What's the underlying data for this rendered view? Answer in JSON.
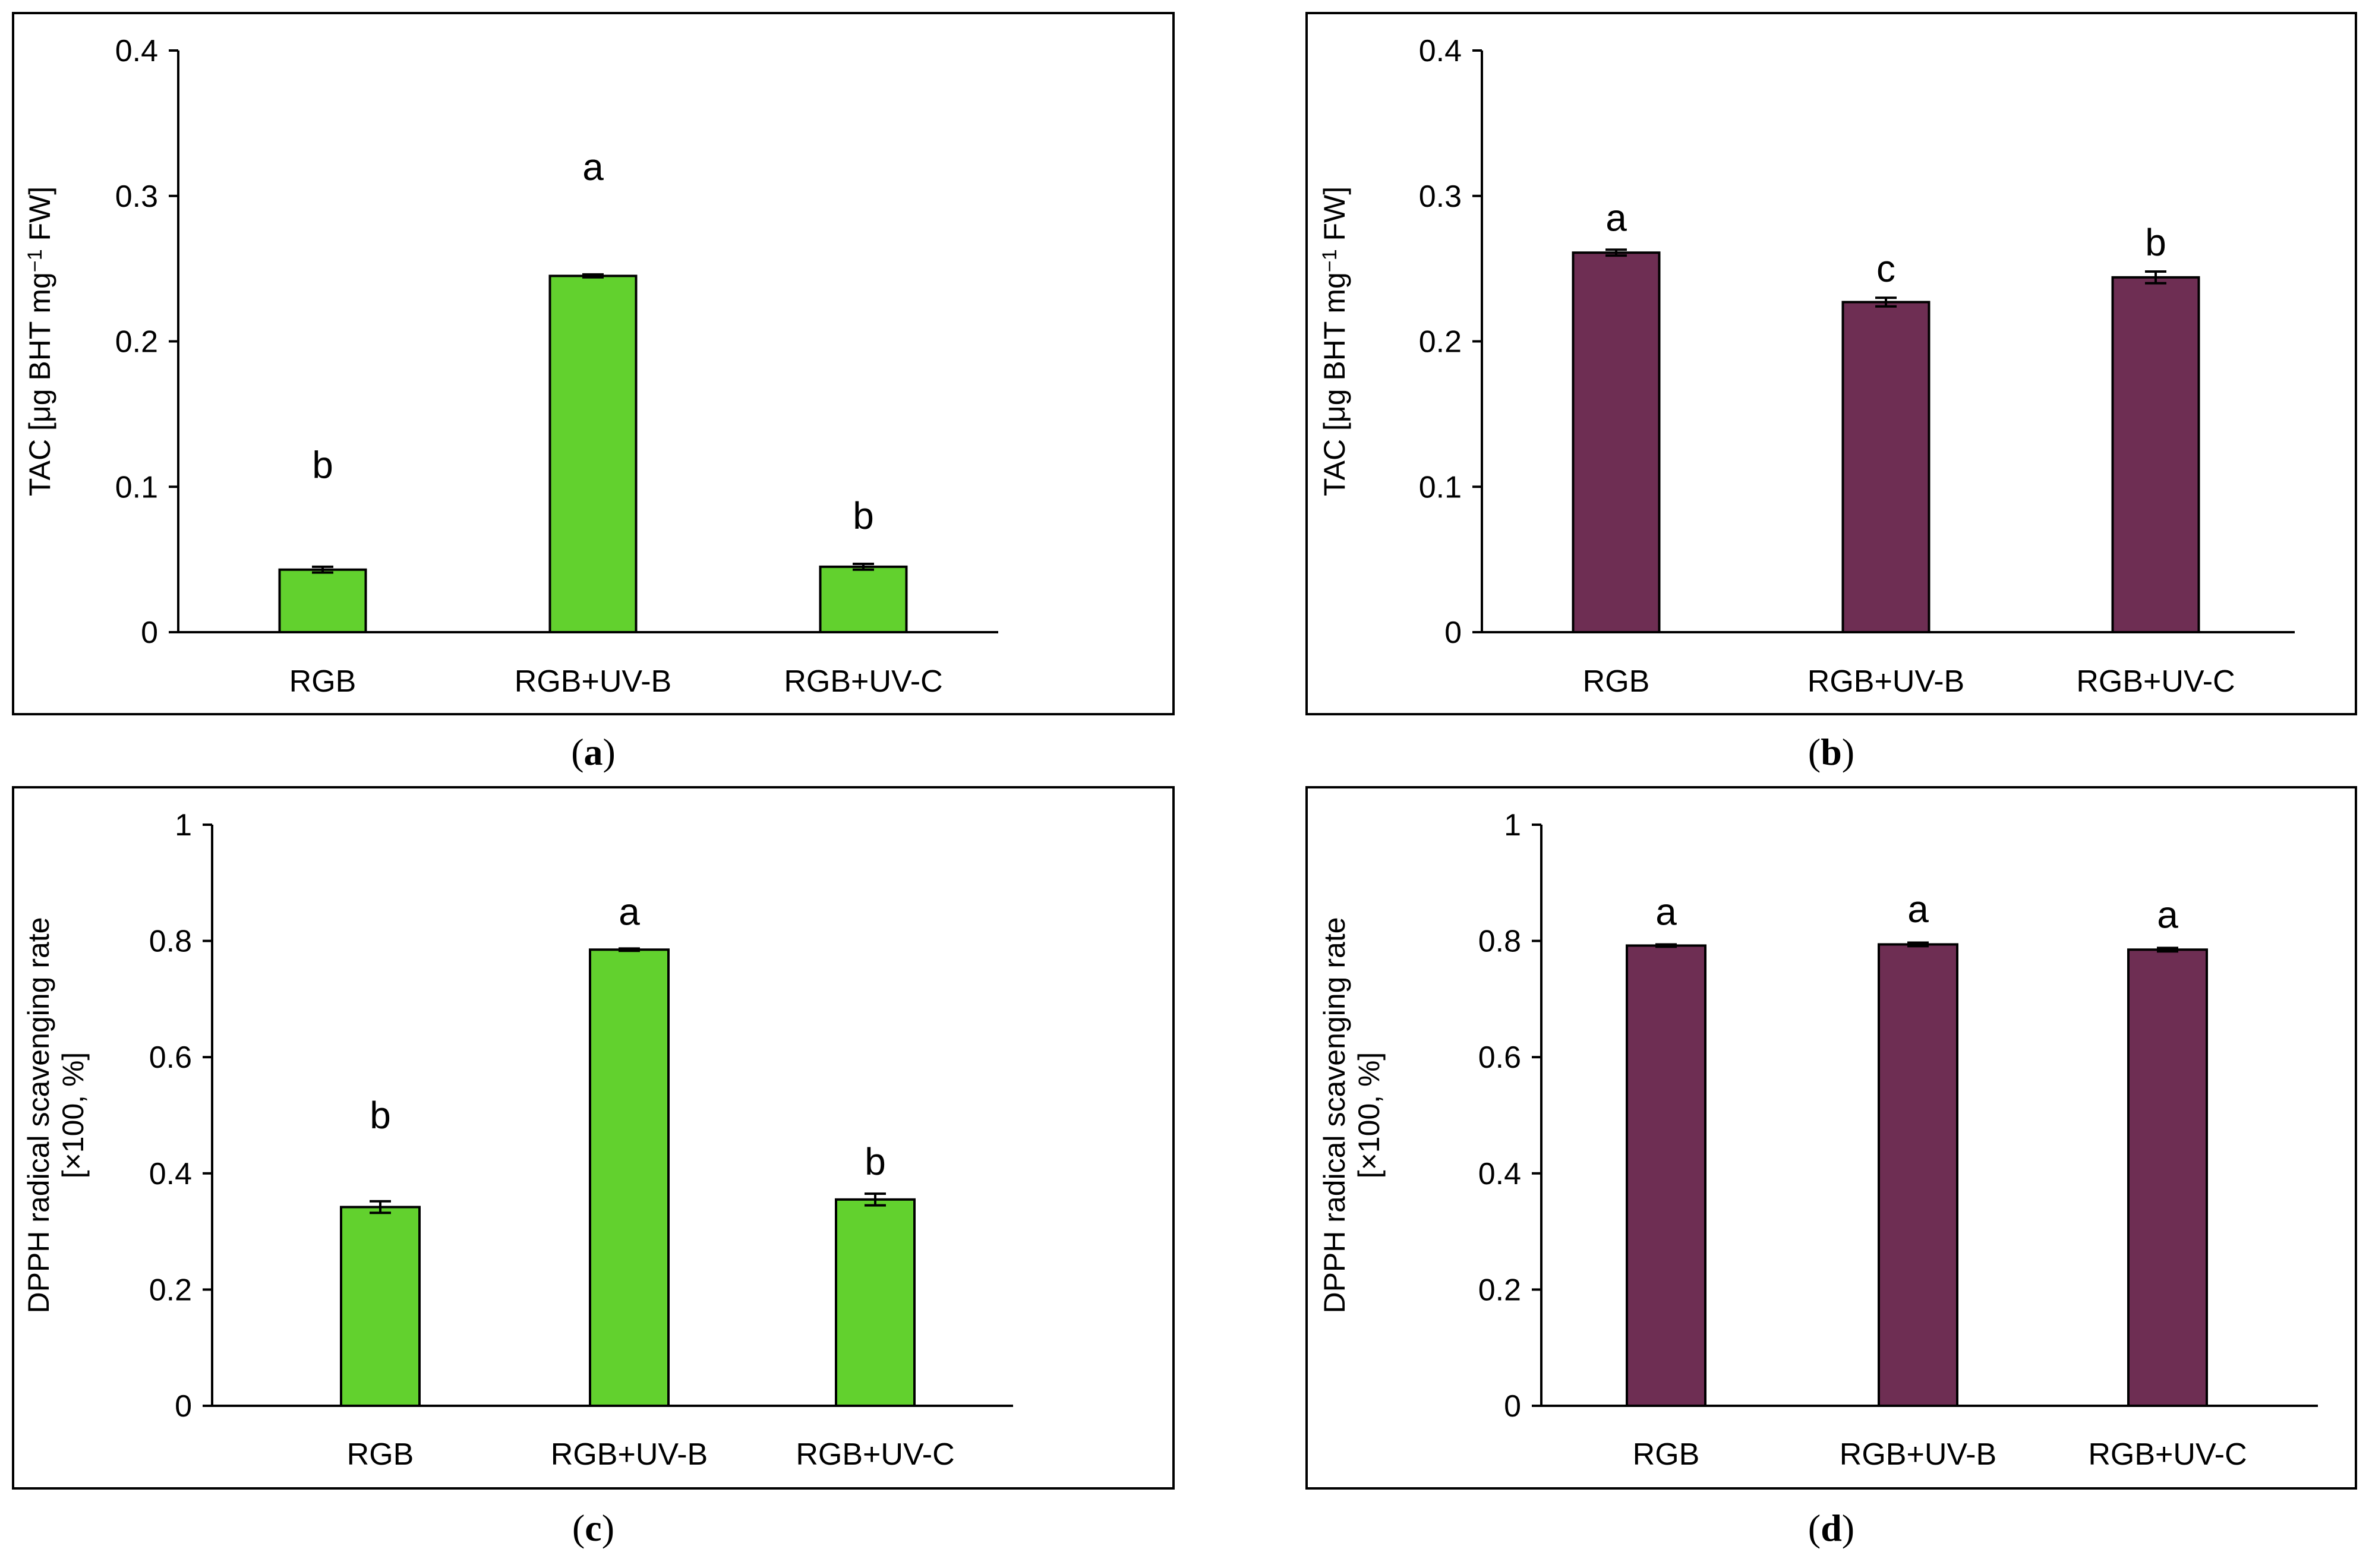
{
  "chart_data": [
    {
      "id": "a",
      "type": "bar",
      "caption_letter": "a",
      "categories": [
        "RGB",
        "RGB+UV-B",
        "RGB+UV-C"
      ],
      "values": [
        0.043,
        0.245,
        0.045
      ],
      "errors": [
        0.002,
        0.001,
        0.002
      ],
      "significance": [
        "b",
        "a",
        "b"
      ],
      "significance_heights": [
        0.115,
        0.32,
        0.08
      ],
      "ylabel_lines": [
        [
          "TAC [μg BHT mg",
          "−1",
          " FW]"
        ]
      ],
      "ylim": [
        0,
        0.4
      ],
      "yticks": [
        0,
        0.1,
        0.2,
        0.3,
        0.4
      ],
      "ytick_labels": [
        "0",
        "0.1",
        "0.2",
        "0.3",
        "0.4"
      ],
      "bar_color": "#62D12E",
      "grid": false,
      "framed": true
    },
    {
      "id": "b",
      "type": "bar",
      "caption_letter": "b",
      "categories": [
        "RGB",
        "RGB+UV-B",
        "RGB+UV-C"
      ],
      "values": [
        0.261,
        0.227,
        0.244
      ],
      "errors": [
        0.002,
        0.003,
        0.004
      ],
      "significance": [
        "a",
        "c",
        "b"
      ],
      "significance_heights": [
        0.285,
        0.25,
        0.268
      ],
      "ylabel_lines": [
        [
          "TAC [μg BHT mg",
          "−1",
          " FW]"
        ]
      ],
      "ylim": [
        0,
        0.4
      ],
      "yticks": [
        0,
        0.1,
        0.2,
        0.3,
        0.4
      ],
      "ytick_labels": [
        "0",
        "0.1",
        "0.2",
        "0.3",
        "0.4"
      ],
      "bar_color": "#6E2E53",
      "grid": false,
      "framed": true
    },
    {
      "id": "c",
      "type": "bar",
      "caption_letter": "c",
      "categories": [
        "RGB",
        "RGB+UV-B",
        "RGB+UV-C"
      ],
      "values": [
        0.342,
        0.785,
        0.355
      ],
      "errors": [
        0.01,
        0.002,
        0.01
      ],
      "significance": [
        "b",
        "a",
        "b"
      ],
      "significance_heights": [
        0.5,
        0.85,
        0.42
      ],
      "ylabel_lines": [
        [
          "DPPH radical scavenging rate"
        ],
        [
          "[×100, %]"
        ]
      ],
      "ylim": [
        0,
        1
      ],
      "yticks": [
        0,
        0.2,
        0.4,
        0.6,
        0.8,
        1
      ],
      "ytick_labels": [
        "0",
        "0.2",
        "0.4",
        "0.6",
        "0.8",
        "1"
      ],
      "bar_color": "#62D12E",
      "grid": false,
      "framed": true
    },
    {
      "id": "d",
      "type": "bar",
      "caption_letter": "d",
      "categories": [
        "RGB",
        "RGB+UV-B",
        "RGB+UV-C"
      ],
      "values": [
        0.792,
        0.794,
        0.785
      ],
      "errors": [
        0.002,
        0.003,
        0.003
      ],
      "significance": [
        "a",
        "a",
        "a"
      ],
      "significance_heights": [
        0.85,
        0.855,
        0.845
      ],
      "ylabel_lines": [
        [
          "DPPH radical scavenging rate"
        ],
        [
          "[×100, %]"
        ]
      ],
      "ylim": [
        0,
        1
      ],
      "yticks": [
        0,
        0.2,
        0.4,
        0.6,
        0.8,
        1
      ],
      "ytick_labels": [
        "0",
        "0.2",
        "0.4",
        "0.6",
        "0.8",
        "1"
      ],
      "bar_color": "#6E2E53",
      "grid": false,
      "framed": true
    }
  ]
}
